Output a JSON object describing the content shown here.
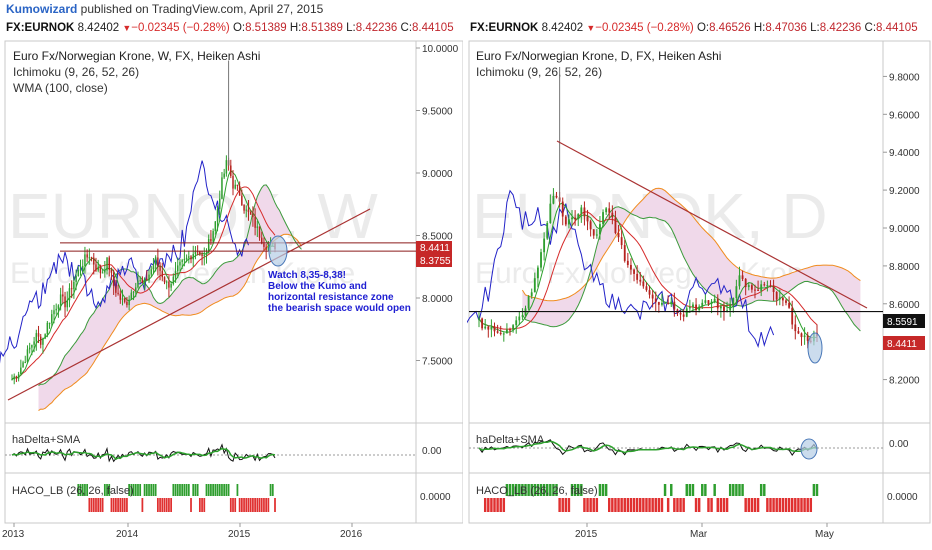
{
  "header": {
    "author": "Kumowizard",
    "published_text": " published on TradingView.com, April 27, 2015"
  },
  "left_quote": {
    "symbol": "FX:EURNOK",
    "last": "8.42402",
    "change": "−0.02345 (−0.28%)",
    "o_label": "O:",
    "o": "8.51389",
    "h_label": "H:",
    "h": "8.51389",
    "l_label": "L:",
    "l": "8.42236",
    "c_label": "C:",
    "c": "8.44105"
  },
  "right_quote": {
    "symbol": "FX:EURNOK",
    "last": "8.42402",
    "change": "−0.02345 (−0.28%)",
    "o_label": "O:",
    "o": "8.46526",
    "h_label": "H:",
    "h": "8.47036",
    "l_label": "L:",
    "l": "8.42236",
    "c_label": "C:",
    "c": "8.44105"
  },
  "colors": {
    "up_candle": "#2e9e2e",
    "down_candle": "#b5221e",
    "cloud_fill": "#f0d9ea",
    "kijun": "#d62b2b",
    "tenkan": "#2ca02c",
    "chikou": "#2323c8",
    "senkou_b": "#f08c1e",
    "senkou_a": "#3c9a3c",
    "trendline": "#a33",
    "annotation": "#1e1ed2",
    "price_tag": "#c62828"
  },
  "chart_data": [
    {
      "type": "candlestick",
      "name": "weekly",
      "title": "Euro Fx/Norwegian Krone, W, FX, Heiken Ashi",
      "indicators": [
        "Ichimoku (9, 26, 52, 26)",
        "WMA (100, close)"
      ],
      "watermark": "EURNOK, W",
      "watermark_sub": "Euro Fx/Norwegian Krone",
      "x_ticks": [
        "2013",
        "2014",
        "2015",
        "2016"
      ],
      "y_ticks": [
        "10.0000",
        "9.5000",
        "9.0000",
        "8.5000",
        "8.0000",
        "7.5000"
      ],
      "ylim": [
        7.2,
        10.0
      ],
      "price_labels": [
        "8.4411",
        "8.3755"
      ],
      "horizontal_levels": [
        8.4411,
        8.3755
      ],
      "annotation": [
        "Watch 8,35-8,38!",
        "Below the Kumo and",
        "horizontal resistance zone",
        "the bearish space would open"
      ],
      "close_path": [
        7.35,
        7.4,
        7.5,
        7.6,
        7.7,
        7.65,
        7.8,
        7.9,
        8.0,
        7.95,
        8.1,
        8.2,
        8.3,
        8.35,
        8.25,
        8.2,
        8.3,
        8.1,
        8.0,
        7.95,
        8.05,
        8.15,
        8.1,
        8.2,
        8.3,
        8.2,
        8.1,
        8.15,
        8.25,
        8.3,
        8.35,
        8.4,
        8.3,
        8.45,
        8.6,
        8.9,
        9.1,
        8.9,
        8.85,
        8.7,
        8.65,
        8.55,
        8.45,
        8.4,
        8.42
      ]
    },
    {
      "type": "candlestick",
      "name": "daily",
      "title": "Euro Fx/Norwegian Krone, D, FX, Heiken Ashi",
      "indicators": [
        "Ichimoku (9, 26, 52, 26)"
      ],
      "watermark": "EURNOK, D",
      "watermark_sub": "Euro Fx/Norwegian Krone",
      "x_ticks": [
        "2015",
        "Mar",
        "May"
      ],
      "y_ticks": [
        "9.8000",
        "9.6000",
        "9.4000",
        "9.2000",
        "9.0000",
        "8.8000",
        "8.6000",
        "8.4000",
        "8.2000"
      ],
      "ylim": [
        8.05,
        9.95
      ],
      "price_labels": [
        "8.5591",
        "8.4411"
      ],
      "horizontal_levels": [
        8.5591
      ],
      "close_path": [
        8.5,
        8.45,
        8.48,
        8.44,
        8.46,
        8.5,
        8.6,
        8.7,
        8.9,
        9.1,
        9.2,
        9.0,
        9.05,
        9.1,
        9.0,
        8.95,
        9.1,
        9.05,
        8.9,
        8.8,
        8.75,
        8.7,
        8.65,
        8.6,
        8.62,
        8.58,
        8.55,
        8.6,
        8.58,
        8.6,
        8.62,
        8.55,
        8.6,
        8.75,
        8.7,
        8.65,
        8.7,
        8.68,
        8.62,
        8.6,
        8.5,
        8.4,
        8.42,
        8.44
      ]
    }
  ],
  "subpanes": {
    "hadelta_label": "haDelta+SMA",
    "hadelta_tick": "0.00",
    "haco_label": "HACO_LB (26, 26, false)",
    "haco_label_right": "HACO_LB (26, 26, false)",
    "haco_tick": "0.0000"
  }
}
